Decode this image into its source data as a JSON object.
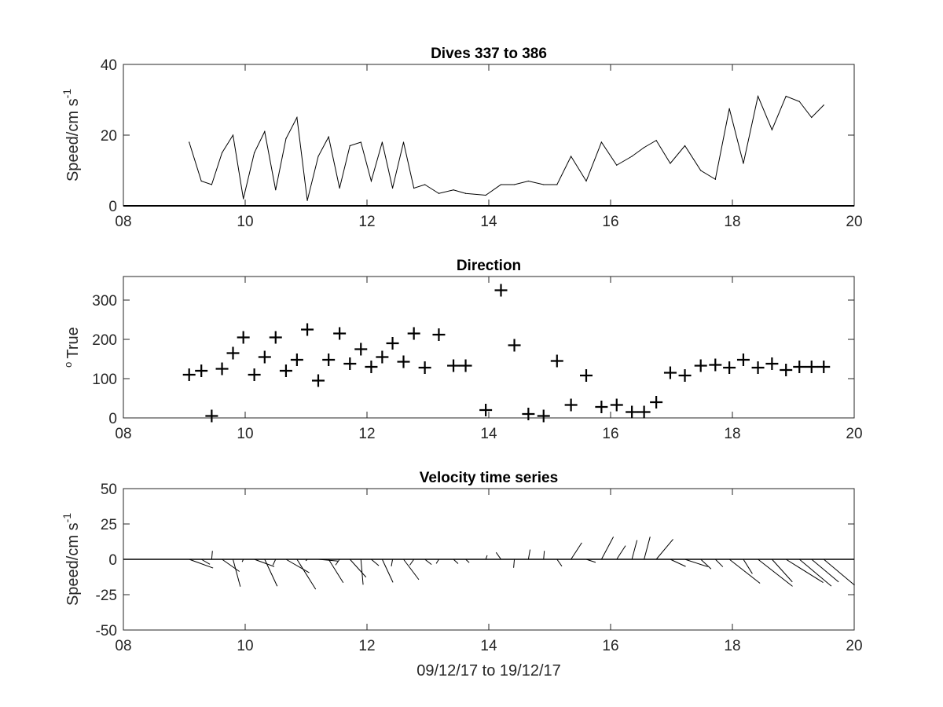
{
  "chart_data": [
    {
      "type": "line",
      "title": "Dives 337 to 386",
      "ylabel": "Speed/cm s",
      "ylabel_sup": "-1",
      "xlim": [
        8,
        20
      ],
      "ylim": [
        0,
        40
      ],
      "xticks": [
        8,
        10,
        12,
        14,
        16,
        18,
        20
      ],
      "xtick_labels": [
        "08",
        "10",
        "12",
        "14",
        "16",
        "18",
        "20"
      ],
      "yticks": [
        0,
        20,
        40
      ],
      "ytick_labels": [
        "0",
        "20",
        "40"
      ],
      "line_color": "#000000",
      "grid": false,
      "x": [
        9.08,
        9.28,
        9.45,
        9.62,
        9.8,
        9.97,
        10.15,
        10.32,
        10.5,
        10.67,
        10.85,
        11.02,
        11.2,
        11.37,
        11.55,
        11.72,
        11.9,
        12.07,
        12.25,
        12.42,
        12.6,
        12.77,
        12.95,
        13.18,
        13.42,
        13.62,
        13.95,
        14.2,
        14.42,
        14.65,
        14.9,
        15.12,
        15.35,
        15.6,
        15.85,
        16.1,
        16.35,
        16.55,
        16.75,
        16.98,
        17.22,
        17.48,
        17.72,
        17.95,
        18.18,
        18.42,
        18.65,
        18.88,
        19.1,
        19.3,
        19.5
      ],
      "y": [
        18,
        7,
        6,
        15,
        20,
        2,
        15,
        21,
        4.5,
        19,
        25,
        1.5,
        14,
        19.5,
        5,
        17,
        18,
        7,
        18,
        5,
        18,
        5,
        6,
        3.5,
        4.5,
        3.5,
        3,
        6,
        6,
        7,
        6,
        6,
        14,
        7,
        18,
        11.5,
        14,
        16.5,
        18.5,
        12,
        17,
        10,
        7.5,
        27.5,
        12,
        31,
        21.5,
        31,
        29.5,
        25,
        28.5
      ]
    },
    {
      "type": "scatter",
      "title": "Direction",
      "ylabel": "True",
      "ylabel_sup": "o",
      "marker": "+",
      "xlim": [
        8,
        20
      ],
      "ylim": [
        0,
        360
      ],
      "xticks": [
        8,
        10,
        12,
        14,
        16,
        18,
        20
      ],
      "xtick_labels": [
        "08",
        "10",
        "12",
        "14",
        "16",
        "18",
        "20"
      ],
      "yticks": [
        0,
        100,
        200,
        300
      ],
      "ytick_labels": [
        "0",
        "100",
        "200",
        "300"
      ],
      "grid": false,
      "x": [
        9.08,
        9.28,
        9.45,
        9.62,
        9.8,
        9.97,
        10.15,
        10.32,
        10.5,
        10.67,
        10.85,
        11.02,
        11.2,
        11.37,
        11.55,
        11.72,
        11.9,
        12.07,
        12.25,
        12.42,
        12.6,
        12.77,
        12.95,
        13.18,
        13.42,
        13.62,
        13.95,
        14.2,
        14.42,
        14.65,
        14.9,
        15.12,
        15.35,
        15.6,
        15.85,
        16.1,
        16.35,
        16.55,
        16.75,
        16.98,
        17.22,
        17.48,
        17.72,
        17.95,
        18.18,
        18.42,
        18.65,
        18.88,
        19.1,
        19.3,
        19.5
      ],
      "y": [
        110,
        120,
        5,
        125,
        165,
        205,
        110,
        155,
        205,
        120,
        148,
        225,
        95,
        148,
        215,
        138,
        175,
        130,
        155,
        190,
        143,
        215,
        128,
        212,
        133,
        133,
        20,
        325,
        185,
        10,
        5,
        145,
        33,
        108,
        28,
        33,
        15,
        15,
        40,
        115,
        108,
        133,
        135,
        128,
        148,
        128,
        138,
        122,
        130,
        130,
        130
      ]
    },
    {
      "type": "quiver",
      "title": "Velocity time series",
      "ylabel": "Speed/cm s",
      "ylabel_sup": "-1",
      "xlabel": "09/12/17 to 19/12/17",
      "xlim": [
        8,
        20
      ],
      "ylim": [
        -50,
        50
      ],
      "xticks": [
        8,
        10,
        12,
        14,
        16,
        18,
        20
      ],
      "xtick_labels": [
        "08",
        "10",
        "12",
        "14",
        "16",
        "18",
        "20"
      ],
      "yticks": [
        -50,
        -25,
        0,
        25,
        50
      ],
      "ytick_labels": [
        "-50",
        "-25",
        "0",
        "25",
        "50"
      ],
      "grid": false,
      "x": [
        9.08,
        9.28,
        9.45,
        9.62,
        9.8,
        9.97,
        10.15,
        10.32,
        10.5,
        10.67,
        10.85,
        11.02,
        11.2,
        11.37,
        11.55,
        11.72,
        11.9,
        12.07,
        12.25,
        12.42,
        12.6,
        12.77,
        12.95,
        13.18,
        13.42,
        13.62,
        13.95,
        14.2,
        14.42,
        14.65,
        14.9,
        15.12,
        15.35,
        15.6,
        15.85,
        16.1,
        16.35,
        16.55,
        16.75,
        16.98,
        17.22,
        17.48,
        17.72,
        17.95,
        18.18,
        18.42,
        18.65,
        18.88,
        19.1,
        19.3,
        19.5
      ],
      "speed": [
        18,
        7,
        6,
        15,
        20,
        2,
        15,
        21,
        4.5,
        19,
        25,
        1.5,
        14,
        19.5,
        5,
        17,
        18,
        7,
        18,
        5,
        18,
        5,
        6,
        3.5,
        4.5,
        3.5,
        3,
        6,
        6,
        7,
        6,
        6,
        14,
        7,
        18,
        11.5,
        14,
        16.5,
        18.5,
        12,
        17,
        10,
        7.5,
        27.5,
        12,
        31,
        21.5,
        31,
        29.5,
        25,
        28.5
      ],
      "direction_deg_true": [
        110,
        120,
        5,
        125,
        165,
        205,
        110,
        155,
        205,
        120,
        148,
        225,
        95,
        148,
        215,
        138,
        175,
        130,
        155,
        190,
        143,
        215,
        128,
        212,
        133,
        133,
        20,
        325,
        185,
        10,
        5,
        145,
        33,
        108,
        28,
        33,
        15,
        15,
        40,
        115,
        108,
        133,
        135,
        128,
        148,
        128,
        138,
        122,
        130,
        130,
        130
      ],
      "zero_line": true
    }
  ]
}
